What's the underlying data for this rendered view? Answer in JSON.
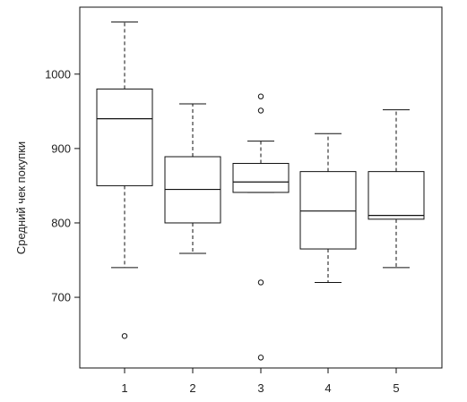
{
  "chart_data": {
    "type": "boxplot",
    "xlabel": "",
    "ylabel": "Средний чек покупки",
    "categories": [
      "1",
      "2",
      "3",
      "4",
      "5"
    ],
    "ylim": [
      605,
      1090
    ],
    "yticks": [
      700,
      800,
      900,
      1000
    ],
    "grid": false,
    "boxes": [
      {
        "category": "1",
        "whisker_low": 740,
        "q1": 850,
        "median": 940,
        "q3": 980,
        "whisker_high": 1070,
        "outliers": [
          648
        ]
      },
      {
        "category": "2",
        "whisker_low": 759,
        "q1": 800,
        "median": 845,
        "q3": 889,
        "whisker_high": 960,
        "outliers": []
      },
      {
        "category": "3",
        "whisker_low": 841,
        "q1": 841,
        "median": 855,
        "q3": 880,
        "whisker_high": 910,
        "outliers": [
          970,
          951,
          720,
          619
        ]
      },
      {
        "category": "4",
        "whisker_low": 720,
        "q1": 765,
        "median": 816,
        "q3": 869,
        "whisker_high": 920,
        "outliers": []
      },
      {
        "category": "5",
        "whisker_low": 740,
        "q1": 805,
        "median": 810,
        "q3": 869,
        "whisker_high": 952,
        "outliers": []
      }
    ]
  }
}
